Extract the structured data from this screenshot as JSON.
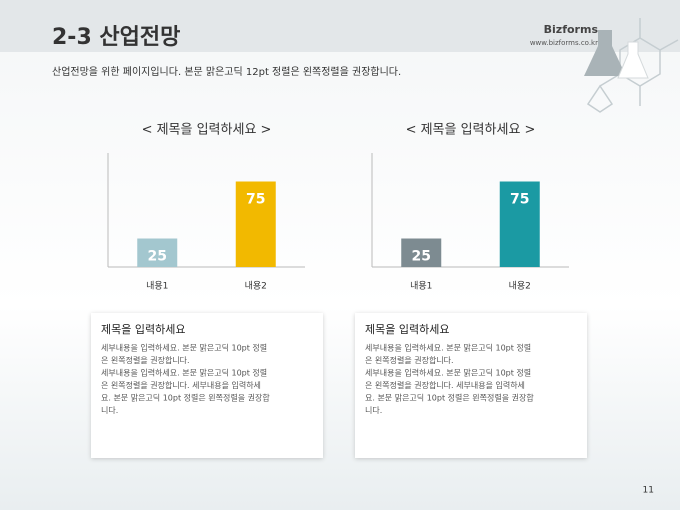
{
  "header": {
    "title": "2-3 산업전망",
    "brand": "Bizforms",
    "url": "www.bizforms.co.kr",
    "subtitle": "산업전망을 위한 페이지입니다. 본문 맑은고딕 12pt 정렬은 왼쪽정렬을 권장합니다."
  },
  "chart_data": [
    {
      "type": "bar",
      "title": "< 제목을 입력하세요 >",
      "categories": [
        "내용1",
        "내용2"
      ],
      "values": [
        25,
        75
      ],
      "colors": [
        "#a3c7cf",
        "#f2b900"
      ],
      "ylim": [
        0,
        100
      ]
    },
    {
      "type": "bar",
      "title": "< 제목을 입력하세요 >",
      "categories": [
        "내용1",
        "내용2"
      ],
      "values": [
        25,
        75
      ],
      "colors": [
        "#7d8b91",
        "#1b9aa3"
      ],
      "ylim": [
        0,
        100
      ]
    }
  ],
  "boxes": [
    {
      "title": "제목을 입력하세요",
      "lines": [
        "세부내용을 입력하세요. 본문 맑은고딕 10pt 정렬",
        "은 왼쪽정렬을 권장합니다.",
        "세부내용을 입력하세요. 본문 맑은고딕 10pt 정렬",
        "은 왼쪽정렬을 권장합니다. 세부내용을 입력하세",
        "요. 본문 맑은고딕 10pt 정렬은 왼쪽정렬을 권장합",
        "니다."
      ]
    },
    {
      "title": "제목을 입력하세요",
      "lines": [
        "세부내용을 입력하세요. 본문 맑은고딕 10pt 정렬",
        "은 왼쪽정렬을 권장합니다.",
        "세부내용을 입력하세요. 본문 맑은고딕 10pt 정렬",
        "은 왼쪽정렬을 권장합니다. 세부내용을 입력하세",
        "요. 본문 맑은고딕 10pt 정렬은 왼쪽정렬을 권장합",
        "니다."
      ]
    }
  ],
  "page_number": "11"
}
